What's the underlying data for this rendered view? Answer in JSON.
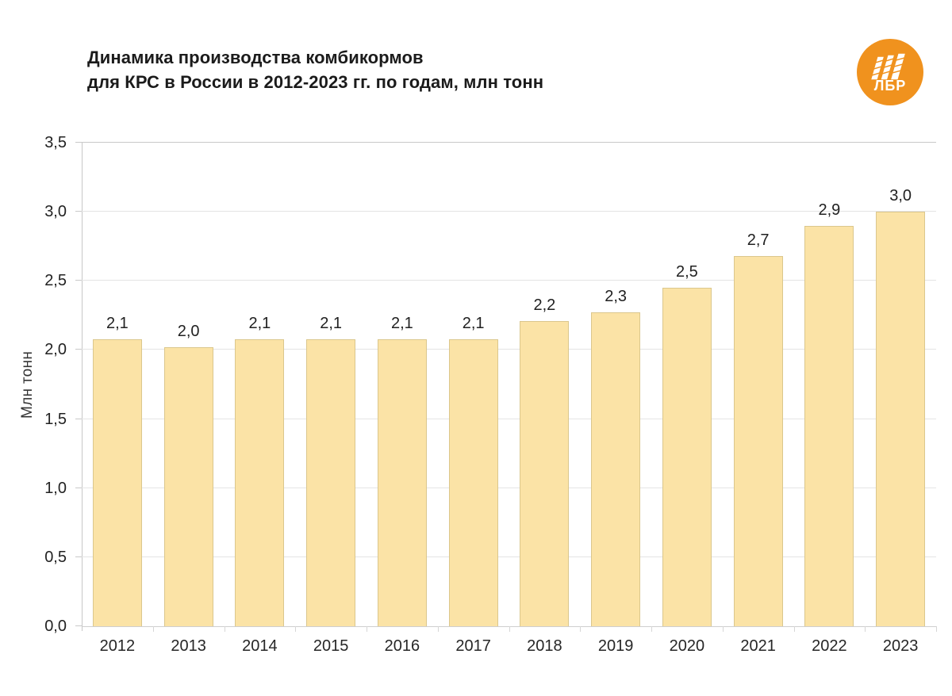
{
  "header": {
    "title_line1": "Динамика производства комбикормов",
    "title_line2": "для КРС в России в 2012-2023 гг. по годам, млн тонн",
    "logo": {
      "text": "ЛБР",
      "circle_color": "#F0921E",
      "glyph_color": "#FFFFFF",
      "icon": "lbr-stripes-icon"
    }
  },
  "chart_data": {
    "type": "bar",
    "title": "Динамика производства комбикормов для КРС в России в 2012-2023 гг. по годам, млн тонн",
    "categories": [
      "2012",
      "2013",
      "2014",
      "2015",
      "2016",
      "2017",
      "2018",
      "2019",
      "2020",
      "2021",
      "2022",
      "2023"
    ],
    "values": [
      2.1,
      2.0,
      2.1,
      2.1,
      2.1,
      2.1,
      2.2,
      2.3,
      2.5,
      2.7,
      2.9,
      3.0
    ],
    "value_labels": [
      "2,1",
      "2,0",
      "2,1",
      "2,1",
      "2,1",
      "2,1",
      "2,2",
      "2,3",
      "2,5",
      "2,7",
      "2,9",
      "3,0"
    ],
    "bar_plot_heights": [
      2.08,
      2.02,
      2.08,
      2.08,
      2.08,
      2.08,
      2.21,
      2.27,
      2.45,
      2.68,
      2.9,
      3.0
    ],
    "xlabel": "",
    "ylabel": "Млн тонн",
    "ylim": [
      0,
      3.5
    ],
    "ytick_step": 0.5,
    "ytick_labels": [
      "0,0",
      "0,5",
      "1,0",
      "1,5",
      "2,0",
      "2,5",
      "3,0",
      "3,5"
    ],
    "legend": "none",
    "grid": "horizontal",
    "bar_color": "#FBE3A6",
    "gridline_color": "#E4E4E4",
    "axis_color": "#C9C9C9",
    "label_color": "#212121"
  }
}
